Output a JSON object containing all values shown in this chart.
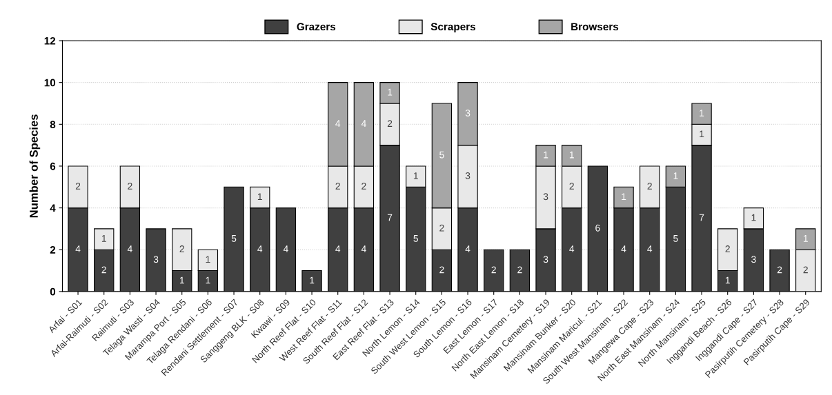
{
  "chart_data": {
    "type": "bar",
    "stacked": true,
    "ylabel": "Number of Species",
    "categories": [
      "Arfai - S01",
      "Arfai-Raimuti - S02",
      "Raimuti - S03",
      "Telaga Wasti - S04",
      "Marampa Port - S05",
      "Telaga Rendani - S06",
      "Rendani Settlement - S07",
      "Sanggeng BLK - S08",
      "Kwawi - S09",
      "North Reef Flat - S10",
      "West Reef Flat - S11",
      "South Reef Flat - S12",
      "East Reef Flat - S13",
      "North Lemon - S14",
      "South West Lemon - S15",
      "South Lemon - S16",
      "East Lemon - S17",
      "North East Lemon - S18",
      "Mansinam Cemetery - S19",
      "Mansinam Bunker - S20",
      "Mansinam Maricul. - S21",
      "South West Mansinam - S22",
      "Mangewa Cape - S23",
      "North East Mansinam - S24",
      "North Mansinam - S25",
      "Inggandi Beach - S26",
      "Inggandi Cape - S27",
      "Pasirputih Cemetery - S28",
      "Pasirputih Cape - S29"
    ],
    "series": [
      {
        "name": "Grazers",
        "color": "#404040",
        "values": [
          4,
          2,
          4,
          3,
          1,
          1,
          5,
          4,
          4,
          1,
          4,
          4,
          7,
          5,
          2,
          4,
          2,
          2,
          3,
          4,
          6,
          4,
          4,
          5,
          7,
          1,
          3,
          2,
          null
        ]
      },
      {
        "name": "Scrapers",
        "color": "#e8e8e8",
        "values": [
          2,
          1,
          2,
          null,
          2,
          1,
          null,
          1,
          null,
          null,
          2,
          2,
          2,
          1,
          2,
          3,
          null,
          null,
          3,
          2,
          null,
          null,
          2,
          null,
          1,
          2,
          1,
          null,
          2
        ]
      },
      {
        "name": "Browsers",
        "color": "#a6a6a6",
        "values": [
          null,
          null,
          null,
          null,
          null,
          null,
          null,
          null,
          null,
          null,
          4,
          4,
          1,
          null,
          5,
          3,
          null,
          null,
          1,
          1,
          null,
          1,
          null,
          1,
          1,
          null,
          null,
          null,
          1
        ]
      }
    ],
    "data_labels": true,
    "ylim": [
      0,
      12
    ],
    "yticks": [
      0,
      2,
      4,
      6,
      8,
      10,
      12
    ],
    "grid": "y",
    "legend": "top"
  }
}
